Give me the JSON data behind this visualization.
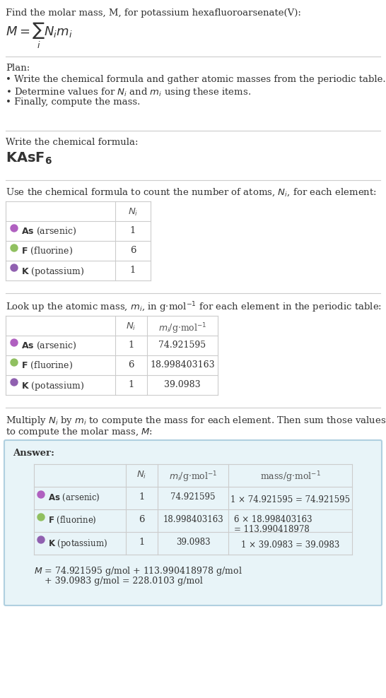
{
  "title_line1": "Find the molar mass, M, for potassium hexafluoroarsenate(V):",
  "formula_display": "M = ∑ Nᵢmᵢ",
  "formula_sub": "i",
  "bg_color": "#ffffff",
  "answer_bg": "#e8f4f8",
  "answer_border": "#b0d0e0",
  "section_line_color": "#cccccc",
  "text_color": "#333333",
  "gray_text": "#888888",
  "elements": [
    {
      "symbol": "As",
      "name": "arsenic",
      "color": "#b060c0",
      "N": 1,
      "m": "74.921595",
      "mass_eq": "1 × 74.921595 = 74.921595"
    },
    {
      "symbol": "F",
      "name": "fluorine",
      "color": "#90c060",
      "N": 6,
      "m": "18.998403163",
      "mass_eq": "6 × 18.998403163\n= 113.990418978"
    },
    {
      "symbol": "K",
      "name": "potassium",
      "color": "#9060b0",
      "N": 1,
      "m": "39.0983",
      "mass_eq": "1 × 39.0983 = 39.0983"
    }
  ],
  "plan_text": "Plan:\n• Write the chemical formula and gather atomic masses from the periodic table.\n• Determine values for Nᵢ and mᵢ using these items.\n• Finally, compute the mass.",
  "formula_label": "Write the chemical formula:",
  "chemical_formula": "KAsF",
  "chemical_formula_sub": "6",
  "count_label": "Use the chemical formula to count the number of atoms, Nᵢ, for each element:",
  "lookup_label": "Look up the atomic mass, mᵢ, in g·mol⁻¹ for each element in the periodic table:",
  "multiply_label": "Multiply Nᵢ by mᵢ to compute the mass for each element. Then sum those values\nto compute the molar mass, M:",
  "final_eq_line1": "M = 74.921595 g/mol + 113.990418978 g/mol",
  "final_eq_line2": "+ 39.0983 g/mol = 228.0103 g/mol",
  "table_border": "#cccccc",
  "header_color": "#555555"
}
